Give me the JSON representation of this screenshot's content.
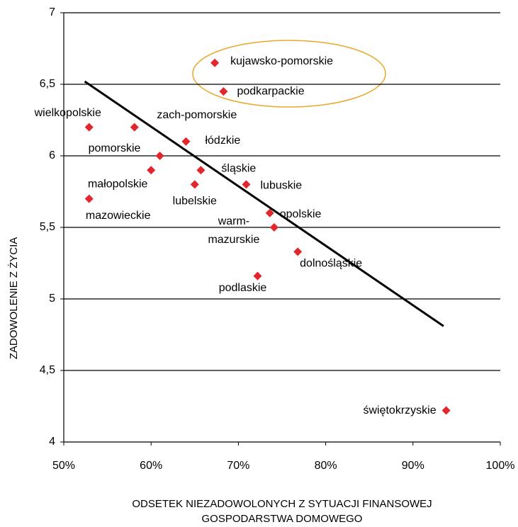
{
  "chart_data": {
    "type": "scatter",
    "xlabel": [
      "ODSETEK NIEZADOWOLONYCH Z SYTUACJI FINANSOWEJ",
      "GOSPODARSTWA DOMOWEGO"
    ],
    "ylabel": "ZADOWOLENIE Z ŻYCIA",
    "xlim": [
      50,
      100
    ],
    "ylim": [
      4,
      7
    ],
    "xticks": [
      {
        "value": 50,
        "label": "50%"
      },
      {
        "value": 60,
        "label": "60%"
      },
      {
        "value": 70,
        "label": "70%"
      },
      {
        "value": 80,
        "label": "80%"
      },
      {
        "value": 90,
        "label": "90%"
      },
      {
        "value": 100,
        "label": "100%"
      }
    ],
    "yticks": [
      4,
      {
        "value": 4.5,
        "label": "4,5"
      },
      5,
      {
        "value": 5.5,
        "label": "5,5"
      },
      6,
      {
        "value": 6.5,
        "label": "6,5"
      },
      7
    ],
    "grid": true,
    "series": [
      {
        "color": "#e3262b",
        "labels": [
          [
            "kujawsko-pomorskie"
          ],
          [
            "podkarpackie"
          ],
          [
            "wielkopolskie"
          ],
          [
            "zach-pomorskie"
          ],
          [
            "łódzkie"
          ],
          [
            "pomorskie"
          ],
          [
            "małopolskie"
          ],
          [
            "śląskie"
          ],
          [
            "lubelskie"
          ],
          [
            "lubuskie"
          ],
          [
            "mazowieckie"
          ],
          [
            "opolskie"
          ],
          [
            "warm-",
            "mazurskie"
          ],
          [
            "dolnośląskie"
          ],
          [
            "podlaskie"
          ],
          [
            "świętokrzyskie"
          ]
        ],
        "x": [
          67.3,
          68.3,
          52.9,
          58.1,
          64.0,
          61.0,
          60.0,
          65.7,
          65.0,
          70.9,
          52.9,
          73.6,
          74.1,
          76.8,
          72.2,
          93.8
        ],
        "values": [
          6.65,
          6.45,
          6.2,
          6.2,
          6.1,
          6.0,
          5.9,
          5.9,
          5.8,
          5.8,
          5.7,
          5.6,
          5.5,
          5.33,
          5.16,
          4.22
        ]
      }
    ],
    "trendline": {
      "color": "#000000",
      "x": [
        52.4,
        93.5
      ],
      "values": [
        6.52,
        4.81
      ]
    }
  }
}
